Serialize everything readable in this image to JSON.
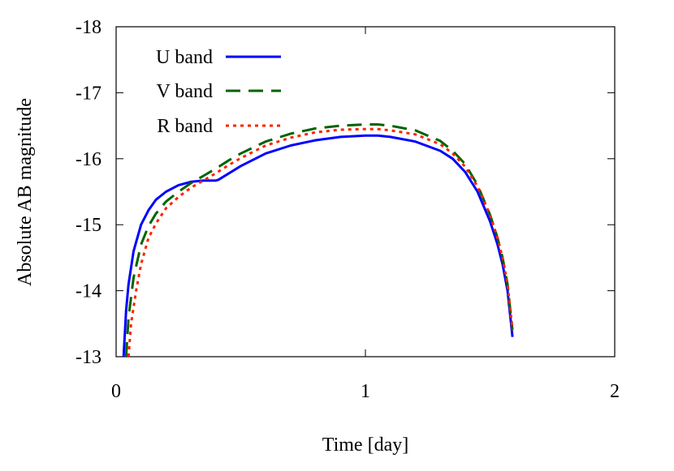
{
  "chart_data": {
    "type": "line",
    "title": "",
    "xlabel": "Time [day]",
    "ylabel": "Absolute AB magnitude",
    "xlim": [
      0,
      2
    ],
    "ylim": [
      -13,
      -18
    ],
    "y_axis_inverted": true,
    "grid": false,
    "legend_position": "top-left",
    "x_ticks": [
      "0",
      "1",
      "2"
    ],
    "y_ticks": [
      "-13",
      "-14",
      "-15",
      "-16",
      "-17",
      "-18"
    ],
    "series": [
      {
        "name": "U band",
        "color": "#0000ff",
        "style": "solid",
        "x": [
          0.03,
          0.04,
          0.05,
          0.07,
          0.1,
          0.13,
          0.16,
          0.2,
          0.25,
          0.3,
          0.35,
          0.4,
          0.41,
          0.5,
          0.6,
          0.7,
          0.8,
          0.9,
          1.0,
          1.05,
          1.1,
          1.2,
          1.3,
          1.35,
          1.4,
          1.45,
          1.5,
          1.53,
          1.55,
          1.57,
          1.59
        ],
        "y": [
          -13.0,
          -13.7,
          -14.1,
          -14.6,
          -15.0,
          -15.22,
          -15.38,
          -15.5,
          -15.6,
          -15.65,
          -15.67,
          -15.67,
          -15.68,
          -15.89,
          -16.08,
          -16.2,
          -16.28,
          -16.33,
          -16.35,
          -16.35,
          -16.33,
          -16.26,
          -16.12,
          -16.0,
          -15.8,
          -15.5,
          -15.05,
          -14.7,
          -14.4,
          -14.0,
          -13.3
        ]
      },
      {
        "name": "V band",
        "color": "#006400",
        "style": "dashed",
        "x": [
          0.04,
          0.05,
          0.07,
          0.1,
          0.13,
          0.16,
          0.2,
          0.25,
          0.3,
          0.35,
          0.4,
          0.45,
          0.5,
          0.6,
          0.7,
          0.8,
          0.9,
          1.0,
          1.05,
          1.1,
          1.2,
          1.3,
          1.35,
          1.4,
          1.45,
          1.5,
          1.53,
          1.55,
          1.57,
          1.59
        ],
        "y": [
          -13.0,
          -13.6,
          -14.2,
          -14.7,
          -14.98,
          -15.17,
          -15.35,
          -15.5,
          -15.63,
          -15.74,
          -15.85,
          -15.97,
          -16.08,
          -16.26,
          -16.38,
          -16.46,
          -16.5,
          -16.52,
          -16.52,
          -16.5,
          -16.43,
          -16.27,
          -16.12,
          -15.92,
          -15.6,
          -15.15,
          -14.8,
          -14.5,
          -14.1,
          -13.4
        ]
      },
      {
        "name": "R band",
        "color": "#ff2200",
        "style": "dotted",
        "x": [
          0.05,
          0.06,
          0.08,
          0.1,
          0.13,
          0.16,
          0.2,
          0.25,
          0.3,
          0.35,
          0.4,
          0.45,
          0.5,
          0.6,
          0.7,
          0.8,
          0.9,
          1.0,
          1.05,
          1.1,
          1.2,
          1.3,
          1.35,
          1.4,
          1.45,
          1.5,
          1.53,
          1.55,
          1.57,
          1.59
        ],
        "y": [
          -13.0,
          -13.5,
          -14.0,
          -14.4,
          -14.8,
          -15.02,
          -15.25,
          -15.42,
          -15.56,
          -15.67,
          -15.78,
          -15.9,
          -16.01,
          -16.2,
          -16.32,
          -16.4,
          -16.44,
          -16.45,
          -16.45,
          -16.43,
          -16.37,
          -16.22,
          -16.08,
          -15.88,
          -15.58,
          -15.15,
          -14.8,
          -14.5,
          -14.1,
          -13.4
        ]
      }
    ]
  }
}
